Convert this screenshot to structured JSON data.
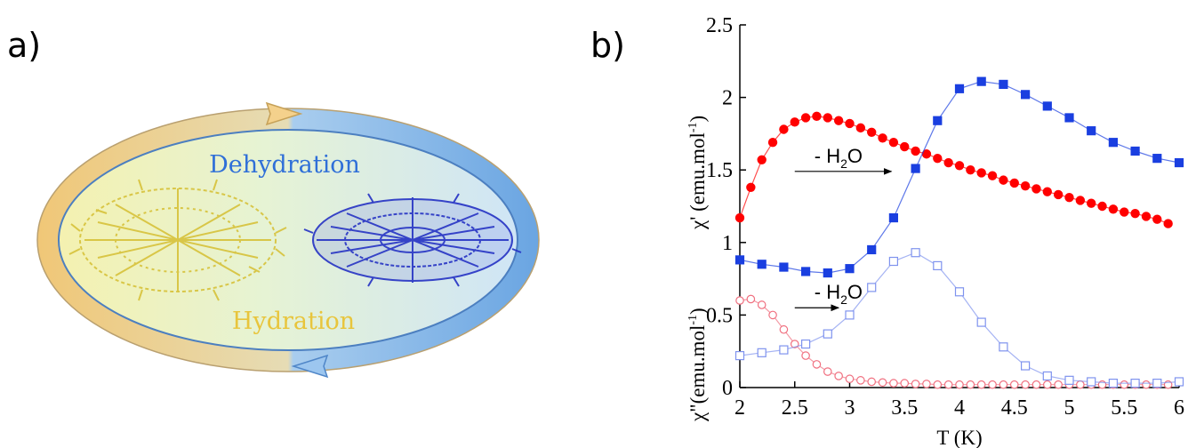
{
  "panel_a": {
    "label": "a)",
    "dehydration": "Dehydration",
    "hydration": "Hydration"
  },
  "panel_b": {
    "label": "b)"
  },
  "chart_data": {
    "type": "scatter",
    "xlabel": "T (K)",
    "x_ticks": [
      "2",
      "2.5",
      "3",
      "3.5",
      "4",
      "4.5",
      "5",
      "5.5",
      "6"
    ],
    "y_ticks": [
      "0",
      "0.5",
      "1",
      "1.5",
      "2",
      "2.5"
    ],
    "xlim": [
      2,
      6
    ],
    "ylim": [
      0,
      2.5
    ],
    "ylabel_top": "χ' (emu.mol",
    "ylabel_top_sup": "-1",
    "ylabel_top_end": ")",
    "ylabel_bottom": "χ\"(emu.mol",
    "ylabel_bottom_sup": "-1",
    "ylabel_bottom_end": ")",
    "annotations": [
      {
        "text": "- H",
        "sub": "2",
        "tail": "O",
        "x_from": 2.5,
        "x_to": 3.38,
        "y": 1.49
      },
      {
        "text": "- H",
        "sub": "2",
        "tail": "O",
        "x_from": 2.5,
        "x_to": 2.9,
        "y": 0.55
      }
    ],
    "series": [
      {
        "color": "#ff0000",
        "marker": "circle",
        "filled": true,
        "line": true,
        "x": [
          2,
          2.1,
          2.2,
          2.3,
          2.4,
          2.5,
          2.6,
          2.7,
          2.8,
          2.9,
          3.0,
          3.1,
          3.2,
          3.3,
          3.4,
          3.5,
          3.6,
          3.7,
          3.8,
          3.9,
          4.0,
          4.1,
          4.2,
          4.3,
          4.4,
          4.5,
          4.6,
          4.7,
          4.8,
          4.9,
          5.0,
          5.1,
          5.2,
          5.3,
          5.4,
          5.5,
          5.6,
          5.7,
          5.8,
          5.9
        ],
        "y": [
          1.17,
          1.38,
          1.57,
          1.69,
          1.78,
          1.83,
          1.86,
          1.87,
          1.86,
          1.84,
          1.82,
          1.79,
          1.76,
          1.72,
          1.69,
          1.66,
          1.63,
          1.61,
          1.58,
          1.55,
          1.53,
          1.5,
          1.48,
          1.46,
          1.43,
          1.41,
          1.39,
          1.37,
          1.35,
          1.33,
          1.31,
          1.29,
          1.27,
          1.25,
          1.23,
          1.21,
          1.2,
          1.18,
          1.16,
          1.13
        ]
      },
      {
        "color": "#1a3fe0",
        "marker": "square",
        "filled": true,
        "line": true,
        "x": [
          2,
          2.2,
          2.4,
          2.6,
          2.8,
          3.0,
          3.2,
          3.4,
          3.6,
          3.8,
          4.0,
          4.2,
          4.4,
          4.6,
          4.8,
          5.0,
          5.2,
          5.4,
          5.6,
          5.8,
          6.0
        ],
        "y": [
          0.88,
          0.85,
          0.83,
          0.8,
          0.79,
          0.82,
          0.95,
          1.17,
          1.51,
          1.84,
          2.06,
          2.11,
          2.09,
          2.02,
          1.94,
          1.86,
          1.77,
          1.69,
          1.63,
          1.58,
          1.55
        ]
      },
      {
        "color": "#f07080",
        "marker": "circle",
        "filled": false,
        "line": true,
        "x": [
          2,
          2.1,
          2.2,
          2.3,
          2.4,
          2.5,
          2.6,
          2.7,
          2.8,
          2.9,
          3.0,
          3.1,
          3.2,
          3.3,
          3.4,
          3.5,
          3.6,
          3.7,
          3.8,
          3.9,
          4.0,
          4.1,
          4.2,
          4.3,
          4.4,
          4.5,
          4.6,
          4.7,
          4.8,
          4.9,
          5.0,
          5.1,
          5.2,
          5.3,
          5.4,
          5.5,
          5.6,
          5.7,
          5.8,
          5.9
        ],
        "y": [
          0.6,
          0.61,
          0.57,
          0.5,
          0.4,
          0.3,
          0.22,
          0.16,
          0.11,
          0.08,
          0.06,
          0.05,
          0.04,
          0.035,
          0.03,
          0.03,
          0.025,
          0.025,
          0.02,
          0.02,
          0.02,
          0.02,
          0.02,
          0.02,
          0.02,
          0.02,
          0.02,
          0.02,
          0.02,
          0.02,
          0.02,
          0.02,
          0.02,
          0.02,
          0.02,
          0.02,
          0.02,
          0.02,
          0.02,
          0.02
        ]
      },
      {
        "color": "#7f93ee",
        "marker": "square",
        "filled": false,
        "line": true,
        "x": [
          2,
          2.2,
          2.4,
          2.6,
          2.8,
          3.0,
          3.2,
          3.4,
          3.6,
          3.8,
          4.0,
          4.2,
          4.4,
          4.6,
          4.8,
          5.0,
          5.2,
          5.4,
          5.6,
          5.8,
          6.0
        ],
        "y": [
          0.22,
          0.24,
          0.26,
          0.3,
          0.37,
          0.5,
          0.69,
          0.87,
          0.93,
          0.84,
          0.66,
          0.45,
          0.28,
          0.15,
          0.08,
          0.05,
          0.04,
          0.03,
          0.03,
          0.03,
          0.04
        ]
      }
    ]
  }
}
